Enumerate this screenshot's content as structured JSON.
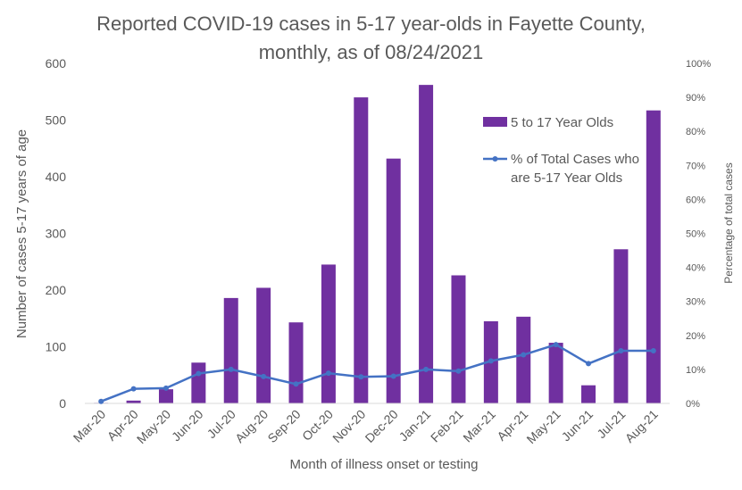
{
  "chart_data": {
    "type": "bar",
    "title": "Reported COVID-19 cases in 5-17 year-olds in Fayette County, monthly, as of 08/24/2021",
    "title_lines": [
      "Reported COVID-19 cases in 5-17 year-olds in Fayette County,",
      "monthly, as of 08/24/2021"
    ],
    "xlabel": "Month of illness onset or testing",
    "ylabel": "Number of cases 5-17 years of age",
    "y2label": "Percentage of total cases",
    "ylim": [
      0,
      600
    ],
    "y2lim": [
      0,
      1
    ],
    "yticks": [
      "0",
      "100",
      "200",
      "300",
      "400",
      "500",
      "600"
    ],
    "y2ticks": [
      "0%",
      "10%",
      "20%",
      "30%",
      "40%",
      "50%",
      "60%",
      "70%",
      "80%",
      "90%",
      "100%"
    ],
    "categories": [
      "Mar-20",
      "Apr-20",
      "May-20",
      "Jun-20",
      "Jul-20",
      "Aug-20",
      "Sep-20",
      "Oct-20",
      "Nov-20",
      "Dec-20",
      "Jan-21",
      "Feb-21",
      "Mar-21",
      "Apr-21",
      "May-21",
      "Jun-21",
      "Jul-21",
      "Aug-21"
    ],
    "series": [
      {
        "name": "5 to 17 Year Olds",
        "type": "bar",
        "axis": "left",
        "color": "#7030a0",
        "values": [
          1,
          5,
          25,
          72,
          186,
          204,
          143,
          245,
          540,
          432,
          562,
          226,
          145,
          153,
          107,
          32,
          272,
          517
        ]
      },
      {
        "name": "% of Total Cases who are 5-17 Year Olds",
        "name_lines": [
          "% of Total Cases who",
          "are 5-17 Year Olds"
        ],
        "type": "line",
        "axis": "right",
        "color": "#4472c4",
        "values": [
          0.006,
          0.043,
          0.045,
          0.088,
          0.1,
          0.079,
          0.057,
          0.089,
          0.078,
          0.08,
          0.1,
          0.095,
          0.125,
          0.143,
          0.173,
          0.117,
          0.155,
          0.155
        ]
      }
    ],
    "legend": "top-right",
    "grid": false
  }
}
